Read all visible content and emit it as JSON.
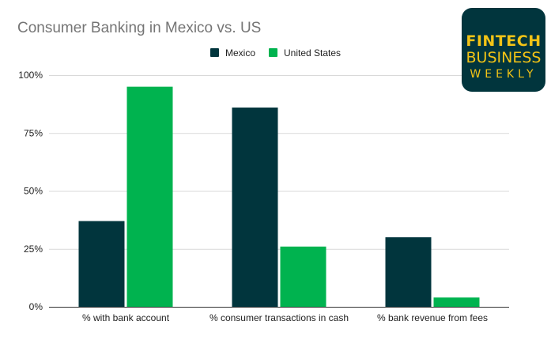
{
  "chart_data": {
    "type": "bar",
    "title": "Consumer Banking in Mexico vs. US",
    "categories": [
      "% with bank account",
      "% consumer transactions in cash",
      "% bank revenue from fees"
    ],
    "series": [
      {
        "name": "Mexico",
        "values": [
          37,
          86,
          30
        ],
        "color": "#01353d"
      },
      {
        "name": "United States",
        "values": [
          95,
          26,
          4
        ],
        "color": "#00b34f"
      }
    ],
    "ylim": [
      0,
      100
    ],
    "yticks": [
      0,
      25,
      50,
      75,
      100
    ],
    "ytick_labels": [
      "0%",
      "25%",
      "50%",
      "75%",
      "100%"
    ],
    "legend_position": "top-center",
    "grid": true
  },
  "logo": {
    "lines": [
      "FINTECH",
      "BUSINESS",
      "WEEKLY"
    ],
    "background": "#01353d",
    "color": "#f2c316"
  }
}
